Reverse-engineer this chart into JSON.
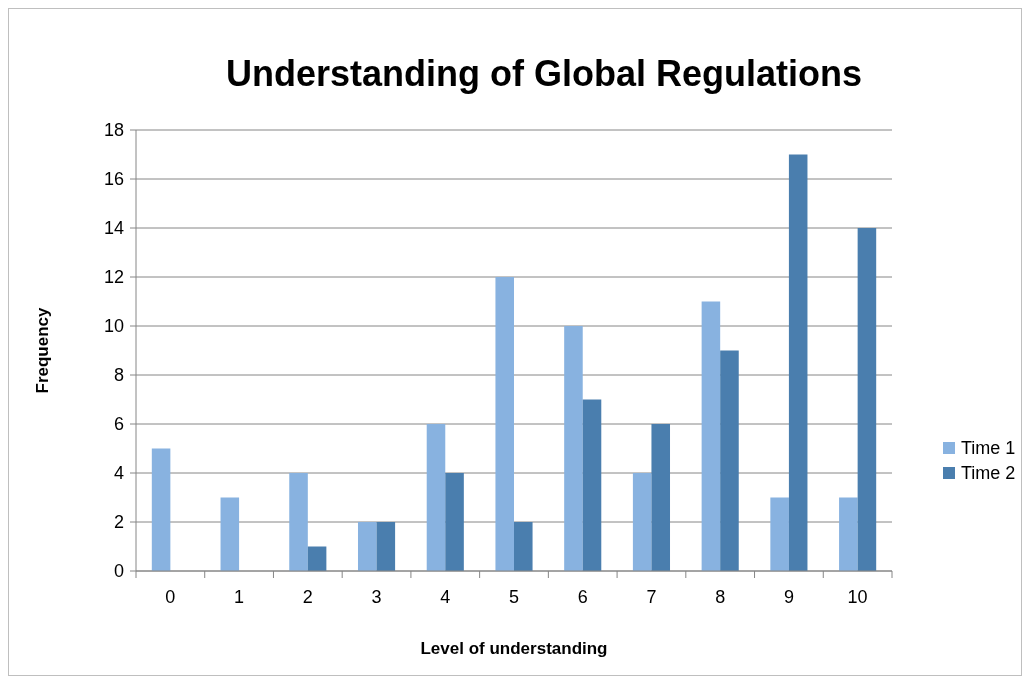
{
  "chart_data": {
    "type": "bar",
    "title": "Understanding of Global Regulations",
    "xlabel": "Level of understanding",
    "ylabel": "Frequency",
    "categories": [
      "0",
      "1",
      "2",
      "3",
      "4",
      "5",
      "6",
      "7",
      "8",
      "9",
      "10"
    ],
    "series": [
      {
        "name": "Time 1",
        "color": "#88b2e0",
        "values": [
          5,
          3,
          4,
          2,
          6,
          12,
          10,
          4,
          11,
          3,
          3
        ]
      },
      {
        "name": "Time 2",
        "color": "#4a7eae",
        "values": [
          0,
          0,
          1,
          2,
          4,
          2,
          7,
          6,
          9,
          17,
          14
        ]
      }
    ],
    "ylim": [
      0,
      18
    ],
    "yticks": [
      0,
      2,
      4,
      6,
      8,
      10,
      12,
      14,
      16,
      18
    ],
    "grid": "y",
    "legend": "right"
  }
}
